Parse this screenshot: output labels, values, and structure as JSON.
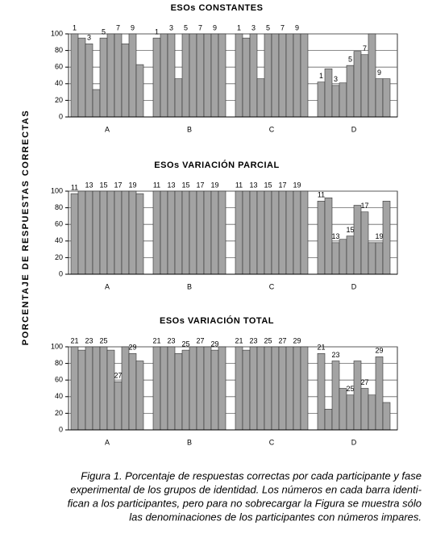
{
  "ylabel": "PORCENTAJE DE RESPUESTAS CORRECTAS",
  "chart_data": [
    {
      "type": "bar",
      "title": "ESOs CONSTANTES",
      "categories": [
        "A",
        "B",
        "C",
        "D"
      ],
      "color": "#a3a3a3",
      "grid": true,
      "ylim": [
        0,
        100
      ],
      "yticks": [
        0,
        20,
        40,
        60,
        80,
        100
      ],
      "groups": [
        {
          "values": [
            100,
            95,
            88,
            33,
            95,
            100,
            100,
            88,
            100,
            63
          ],
          "bar_labels": [
            1,
            null,
            3,
            null,
            5,
            null,
            7,
            null,
            9,
            null
          ]
        },
        {
          "values": [
            95,
            100,
            100,
            46,
            100,
            100,
            100,
            100,
            100,
            100
          ],
          "bar_labels": [
            1,
            null,
            3,
            null,
            5,
            null,
            7,
            null,
            9,
            null
          ]
        },
        {
          "values": [
            100,
            95,
            100,
            46,
            100,
            100,
            100,
            100,
            100,
            100
          ],
          "bar_labels": [
            1,
            null,
            3,
            null,
            5,
            null,
            7,
            null,
            9,
            null
          ]
        },
        {
          "values": [
            42,
            58,
            38,
            41,
            62,
            79,
            75,
            100,
            46,
            46
          ],
          "bar_labels": [
            1,
            null,
            3,
            null,
            5,
            null,
            7,
            null,
            9,
            null
          ]
        }
      ]
    },
    {
      "type": "bar",
      "title": "ESOs VARIACIÓN PARCIAL",
      "categories": [
        "A",
        "B",
        "C",
        "D"
      ],
      "color": "#a3a3a3",
      "grid": true,
      "ylim": [
        0,
        100
      ],
      "yticks": [
        0,
        20,
        40,
        60,
        80,
        100
      ],
      "groups": [
        {
          "values": [
            97,
            100,
            100,
            100,
            100,
            100,
            100,
            100,
            100,
            97
          ],
          "bar_labels": [
            11,
            null,
            13,
            null,
            15,
            null,
            17,
            null,
            19,
            null
          ]
        },
        {
          "values": [
            100,
            100,
            100,
            100,
            100,
            100,
            100,
            100,
            100,
            100
          ],
          "bar_labels": [
            11,
            null,
            13,
            null,
            15,
            null,
            17,
            null,
            19,
            null
          ]
        },
        {
          "values": [
            100,
            100,
            100,
            100,
            100,
            100,
            100,
            100,
            100,
            100
          ],
          "bar_labels": [
            11,
            null,
            13,
            null,
            15,
            null,
            17,
            null,
            19,
            null
          ]
        },
        {
          "values": [
            88,
            92,
            38,
            42,
            46,
            83,
            75,
            38,
            38,
            88
          ],
          "bar_labels": [
            11,
            null,
            13,
            null,
            15,
            null,
            17,
            null,
            19,
            null
          ]
        }
      ]
    },
    {
      "type": "bar",
      "title": "ESOs VARIACIÓN TOTAL",
      "categories": [
        "A",
        "B",
        "C",
        "D"
      ],
      "color": "#a3a3a3",
      "grid": true,
      "ylim": [
        0,
        100
      ],
      "yticks": [
        0,
        20,
        40,
        60,
        80,
        100
      ],
      "groups": [
        {
          "values": [
            100,
            96,
            100,
            100,
            100,
            96,
            58,
            100,
            92,
            83
          ],
          "bar_labels": [
            21,
            null,
            23,
            null,
            25,
            null,
            27,
            null,
            29,
            null
          ]
        },
        {
          "values": [
            100,
            100,
            100,
            92,
            96,
            100,
            100,
            100,
            96,
            100
          ],
          "bar_labels": [
            21,
            null,
            23,
            null,
            25,
            null,
            27,
            null,
            29,
            null
          ]
        },
        {
          "values": [
            100,
            96,
            100,
            100,
            100,
            100,
            100,
            100,
            100,
            100
          ],
          "bar_labels": [
            21,
            null,
            23,
            null,
            25,
            null,
            27,
            null,
            29,
            null
          ]
        },
        {
          "values": [
            92,
            25,
            83,
            50,
            42,
            83,
            50,
            42,
            88,
            33
          ],
          "bar_labels": [
            21,
            null,
            23,
            null,
            25,
            null,
            27,
            null,
            29,
            null
          ]
        }
      ]
    }
  ],
  "caption": [
    "Figura 1. Porcentaje de respuestas correctas por cada participante y fase",
    "experimental de los grupos de identidad. Los números en cada barra identi-",
    "fican a los participantes, pero para no sobrecargar la Figura se muestra sólo",
    "las denominaciones de los participantes con números impares."
  ]
}
